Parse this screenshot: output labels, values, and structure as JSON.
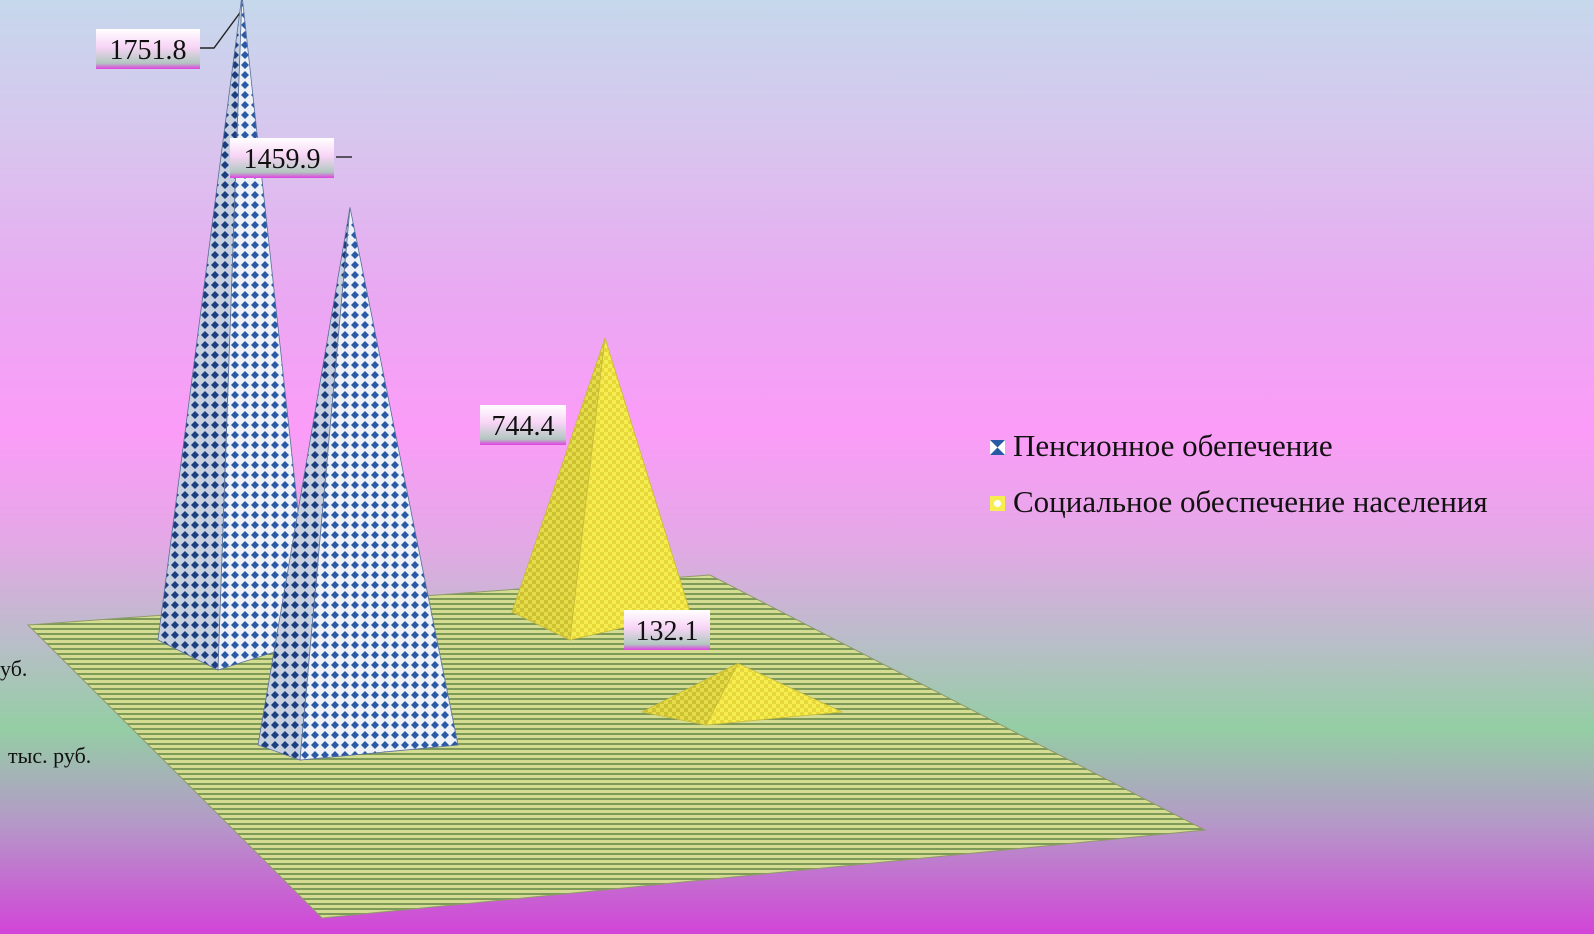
{
  "chart_data": {
    "type": "bar",
    "subtype": "3d-pyramid",
    "title": "",
    "categories": [
      "руб.",
      "тыс. руб."
    ],
    "category_labels_visible": [
      "уб.",
      "тыс. руб."
    ],
    "series": [
      {
        "name": "Пенсионное обепечение",
        "values": [
          1751.8,
          1459.9
        ],
        "color": "#2a5aa6",
        "pattern": "blue-diamond-check"
      },
      {
        "name": "Социальное обеспечение населения",
        "values": [
          744.4,
          132.1
        ],
        "color": "#f2e640",
        "pattern": "yellow-check"
      }
    ],
    "data_labels": [
      "1751.8",
      "1459.9",
      "744.4",
      "132.1"
    ],
    "legend_position": "right",
    "floor_color": "#b8c86c"
  }
}
